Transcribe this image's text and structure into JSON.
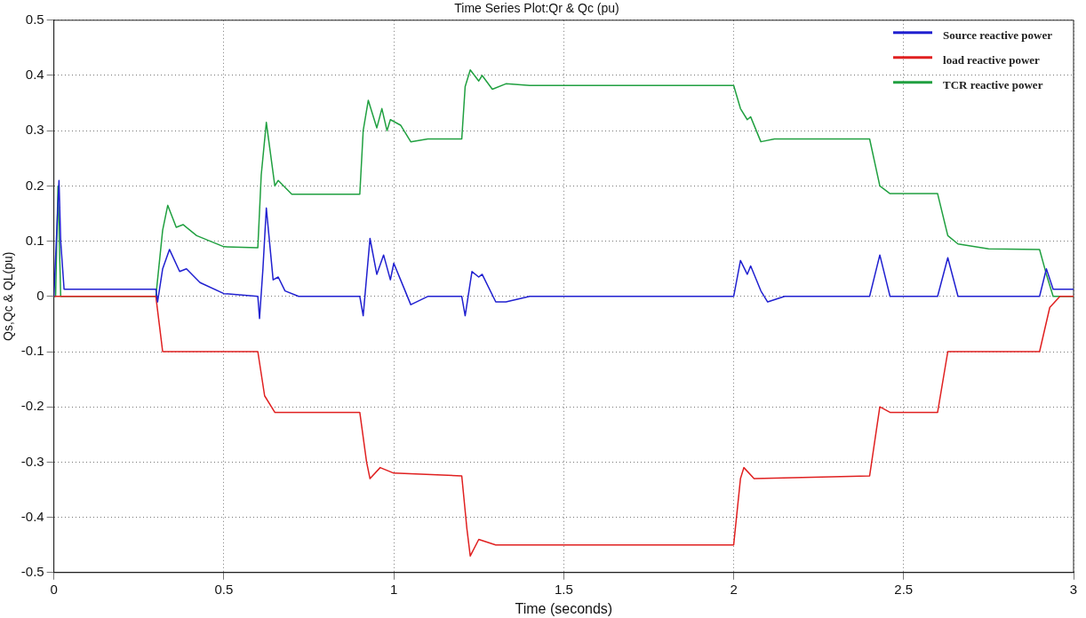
{
  "chart_data": {
    "type": "line",
    "title": "Time Series Plot:Qr & Qc (pu)",
    "xlabel": "Time (seconds)",
    "ylabel": "Qs,Qc & QL(pu)",
    "xlim": [
      0,
      3
    ],
    "xticks": [
      0,
      0.5,
      1,
      1.5,
      2,
      2.5,
      3
    ],
    "ylim": [
      -0.5,
      0.5
    ],
    "yticks": [
      -0.5,
      -0.4,
      -0.3,
      -0.2,
      -0.1,
      0,
      0.1,
      0.2,
      0.3,
      0.4,
      0.5
    ],
    "grid": true,
    "legend": "top right",
    "marker": "none",
    "line_style": "solid",
    "series": [
      {
        "name": "Source reactive power",
        "color": "#2020d0",
        "x": [
          0,
          0.015,
          0.02,
          0.03,
          0.3,
          0.305,
          0.32,
          0.34,
          0.37,
          0.39,
          0.43,
          0.5,
          0.6,
          0.605,
          0.615,
          0.625,
          0.645,
          0.66,
          0.68,
          0.72,
          0.9,
          0.91,
          0.93,
          0.95,
          0.97,
          0.99,
          1.0,
          1.02,
          1.05,
          1.1,
          1.2,
          1.21,
          1.23,
          1.25,
          1.26,
          1.3,
          1.33,
          1.4,
          2.0,
          2.02,
          2.04,
          2.05,
          2.08,
          2.1,
          2.15,
          2.4,
          2.43,
          2.46,
          2.6,
          2.63,
          2.66,
          2.9,
          2.92,
          2.94,
          3
        ],
        "values": [
          0,
          0.21,
          0.1,
          0.013,
          0.013,
          -0.01,
          0.05,
          0.085,
          0.045,
          0.05,
          0.025,
          0.005,
          0,
          -0.04,
          0.05,
          0.16,
          0.03,
          0.035,
          0.01,
          0,
          0,
          -0.035,
          0.105,
          0.04,
          0.075,
          0.03,
          0.06,
          0.03,
          -0.015,
          0,
          0,
          -0.035,
          0.045,
          0.035,
          0.04,
          -0.01,
          -0.01,
          0,
          0,
          0.065,
          0.04,
          0.055,
          0.01,
          -0.01,
          0,
          0,
          0.075,
          0,
          0,
          0.07,
          0,
          0,
          0.05,
          0.013,
          0.013
        ]
      },
      {
        "name": "load reactive power",
        "color": "#e02020",
        "x": [
          0,
          0.3,
          0.31,
          0.32,
          0.6,
          0.62,
          0.65,
          0.9,
          0.92,
          0.93,
          0.96,
          1.0,
          1.2,
          1.215,
          1.225,
          1.25,
          1.3,
          2.0,
          2.02,
          2.03,
          2.06,
          2.4,
          2.43,
          2.46,
          2.6,
          2.63,
          2.9,
          2.93,
          2.96,
          3
        ],
        "values": [
          0,
          0,
          -0.05,
          -0.1,
          -0.1,
          -0.18,
          -0.21,
          -0.21,
          -0.3,
          -0.33,
          -0.31,
          -0.32,
          -0.325,
          -0.42,
          -0.47,
          -0.44,
          -0.45,
          -0.45,
          -0.33,
          -0.31,
          -0.33,
          -0.325,
          -0.2,
          -0.21,
          -0.21,
          -0.1,
          -0.1,
          -0.02,
          0,
          0
        ]
      },
      {
        "name": "TCR reactive power",
        "color": "#20a040",
        "x": [
          0,
          0.005,
          0.012,
          0.02,
          0.3,
          0.32,
          0.335,
          0.36,
          0.38,
          0.42,
          0.5,
          0.6,
          0.61,
          0.625,
          0.65,
          0.66,
          0.7,
          0.9,
          0.91,
          0.925,
          0.95,
          0.965,
          0.98,
          0.99,
          1.02,
          1.05,
          1.1,
          1.2,
          1.21,
          1.225,
          1.25,
          1.26,
          1.29,
          1.33,
          1.4,
          2.0,
          2.02,
          2.04,
          2.05,
          2.08,
          2.12,
          2.4,
          2.43,
          2.46,
          2.6,
          2.63,
          2.66,
          2.75,
          2.9,
          2.92,
          2.94,
          3
        ],
        "values": [
          0,
          0,
          0.2,
          0,
          0,
          0.12,
          0.165,
          0.125,
          0.13,
          0.11,
          0.09,
          0.088,
          0.22,
          0.315,
          0.2,
          0.21,
          0.185,
          0.185,
          0.3,
          0.355,
          0.305,
          0.34,
          0.3,
          0.32,
          0.31,
          0.28,
          0.285,
          0.285,
          0.38,
          0.41,
          0.39,
          0.4,
          0.375,
          0.385,
          0.382,
          0.382,
          0.34,
          0.32,
          0.325,
          0.28,
          0.285,
          0.285,
          0.2,
          0.186,
          0.186,
          0.11,
          0.095,
          0.086,
          0.085,
          0.04,
          0,
          0
        ]
      }
    ]
  }
}
